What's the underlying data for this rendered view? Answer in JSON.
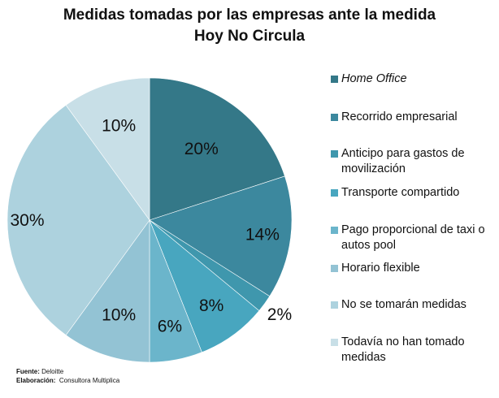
{
  "chart_data": {
    "type": "pie",
    "title": "Medidas tomadas por las empresas ante la medida",
    "subtitle": "Hoy No Circula",
    "start_angle_deg": 0,
    "direction": "clockwise",
    "slices": [
      {
        "label": "Home Office",
        "value": 20,
        "display": "20%",
        "color": "#347888",
        "italic": true
      },
      {
        "label": "Recorrido empresarial",
        "value": 14,
        "display": "14%",
        "color": "#3c889e",
        "italic": false
      },
      {
        "label": "Anticipo para gastos de movilización",
        "value": 2,
        "display": "2%",
        "color": "#3f97ad",
        "italic": false
      },
      {
        "label": "Transporte compartido",
        "value": 8,
        "display": "8%",
        "color": "#48a6bf",
        "italic": false
      },
      {
        "label": "Pago proporcional de taxi o autos pool",
        "value": 6,
        "display": "6%",
        "color": "#6bb5cb",
        "italic": false
      },
      {
        "label": "Horario flexible",
        "value": 10,
        "display": "10%",
        "color": "#93c3d4",
        "italic": false
      },
      {
        "label": "No se tomarán medidas",
        "value": 30,
        "display": "30%",
        "color": "#add2de",
        "italic": false
      },
      {
        "label": "Todavía no han tomado medidas",
        "value": 10,
        "display": "10%",
        "color": "#c8dfe7",
        "italic": false
      }
    ],
    "legend_position": "right"
  },
  "footer": {
    "source_label": "Fuente:",
    "source_value": "Deloitte",
    "elaboration_label": "Elaboración:",
    "elaboration_value": "Consultora Multiplica"
  }
}
